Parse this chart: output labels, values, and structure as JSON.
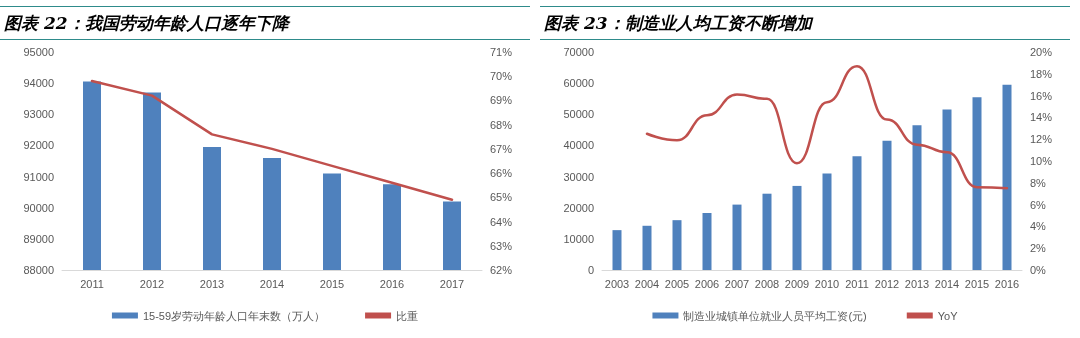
{
  "chart_data": [
    {
      "type": "bar",
      "title": "图表 22：我国劳动年龄人口逐年下降",
      "categories": [
        "2011",
        "2012",
        "2013",
        "2014",
        "2015",
        "2016",
        "2017"
      ],
      "series": [
        {
          "name": "15-59岁劳动年龄人口年末数（万人）",
          "color": "#4f81bd",
          "values": [
            94050,
            93700,
            91950,
            91600,
            91100,
            90750,
            90200
          ]
        },
        {
          "name": "比重",
          "type": "line",
          "axis": "y2",
          "color": "#c0504d",
          "values": [
            69.8,
            69.2,
            67.6,
            67.0,
            66.3,
            65.6,
            64.9
          ]
        }
      ],
      "ylim": [
        88000,
        95000
      ],
      "yticks": [
        88000,
        89000,
        90000,
        91000,
        92000,
        93000,
        94000,
        95000
      ],
      "y2lim": [
        62,
        71
      ],
      "y2ticks": [
        {
          "value": 62,
          "label": "62%"
        },
        {
          "value": 63,
          "label": "63%"
        },
        {
          "value": 64,
          "label": "64%"
        },
        {
          "value": 65,
          "label": "65%"
        },
        {
          "value": 66,
          "label": "66%"
        },
        {
          "value": 67,
          "label": "67%"
        },
        {
          "value": 68,
          "label": "68%"
        },
        {
          "value": 69,
          "label": "69%"
        },
        {
          "value": 70,
          "label": "70%"
        },
        {
          "value": 71,
          "label": "71%"
        }
      ],
      "legend": "bottom",
      "marker": "none",
      "grid": false
    },
    {
      "type": "bar",
      "title": "图表 23：制造业人均工资不断增加",
      "categories": [
        "2003",
        "2004",
        "2005",
        "2006",
        "2007",
        "2008",
        "2009",
        "2010",
        "2011",
        "2012",
        "2013",
        "2014",
        "2015",
        "2016"
      ],
      "series": [
        {
          "name": "制造业城镇单位就业人员平均工资(元)",
          "color": "#4f81bd",
          "values": [
            12800,
            14200,
            16000,
            18300,
            21000,
            24500,
            27000,
            31000,
            36500,
            41500,
            46500,
            51500,
            55500,
            59500
          ]
        },
        {
          "name": "YoY",
          "type": "line",
          "axis": "y2",
          "color": "#c0504d",
          "values": [
            null,
            12.5,
            11.9,
            14.2,
            16.1,
            15.7,
            9.8,
            15.4,
            18.7,
            13.8,
            11.5,
            10.8,
            7.6,
            7.5
          ]
        }
      ],
      "ylim": [
        0,
        70000
      ],
      "yticks": [
        0,
        10000,
        20000,
        30000,
        40000,
        50000,
        60000,
        70000
      ],
      "y2lim": [
        0,
        20
      ],
      "y2ticks": [
        {
          "value": 0,
          "label": "0%"
        },
        {
          "value": 2,
          "label": "2%"
        },
        {
          "value": 4,
          "label": "4%"
        },
        {
          "value": 6,
          "label": "6%"
        },
        {
          "value": 8,
          "label": "8%"
        },
        {
          "value": 10,
          "label": "10%"
        },
        {
          "value": 12,
          "label": "12%"
        },
        {
          "value": 14,
          "label": "14%"
        },
        {
          "value": 16,
          "label": "16%"
        },
        {
          "value": 18,
          "label": "18%"
        },
        {
          "value": 20,
          "label": "20%"
        }
      ],
      "legend": "bottom",
      "marker": "none",
      "grid": false
    }
  ]
}
